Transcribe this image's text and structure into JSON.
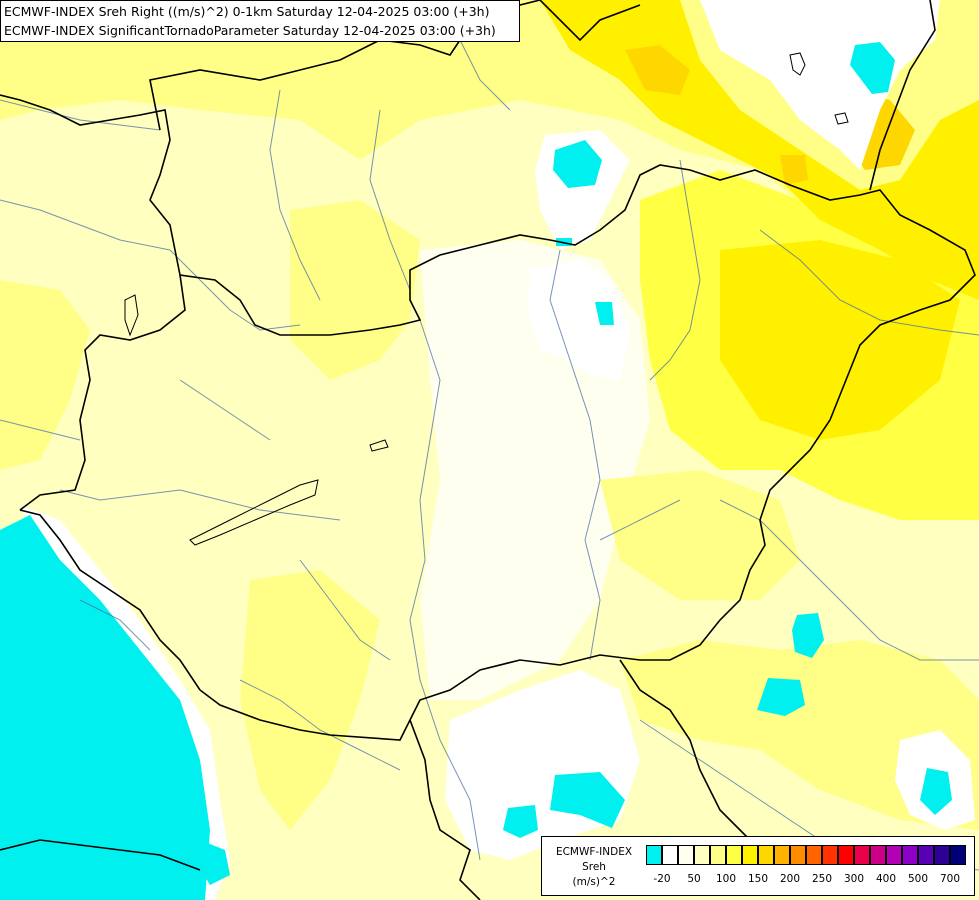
{
  "header": {
    "line1": "ECMWF-INDEX Sreh Right ((m/s)^2) 0-1km Saturday 12-04-2025 03:00 (+3h)",
    "line2": "ECMWF-INDEX SignificantTornadoParameter Saturday 12-04-2025 03:00 (+3h)"
  },
  "legend": {
    "title": [
      "ECMWF-INDEX",
      "Sreh",
      "(m/s)^2"
    ],
    "colors": [
      "#00f0f0",
      "#ffffff",
      "#fffff0",
      "#ffffc0",
      "#ffff88",
      "#ffff44",
      "#fff000",
      "#ffd700",
      "#ffb300",
      "#ff8c00",
      "#ff6400",
      "#ff3200",
      "#ff0000",
      "#e8004a",
      "#cc0088",
      "#b400b4",
      "#8c00c8",
      "#5a00b4",
      "#2d0096",
      "#000078"
    ],
    "ticks": [
      "-20",
      "50",
      "100",
      "150",
      "200",
      "250",
      "300",
      "400",
      "500",
      "700"
    ]
  },
  "colors": {
    "cyan": "#00f0f0",
    "white": "#ffffff",
    "pale": "#ffffc0",
    "lightyellow": "#ffff88",
    "yellow": "#ffff44",
    "deepyellow": "#fff000",
    "gold": "#ffd700"
  }
}
